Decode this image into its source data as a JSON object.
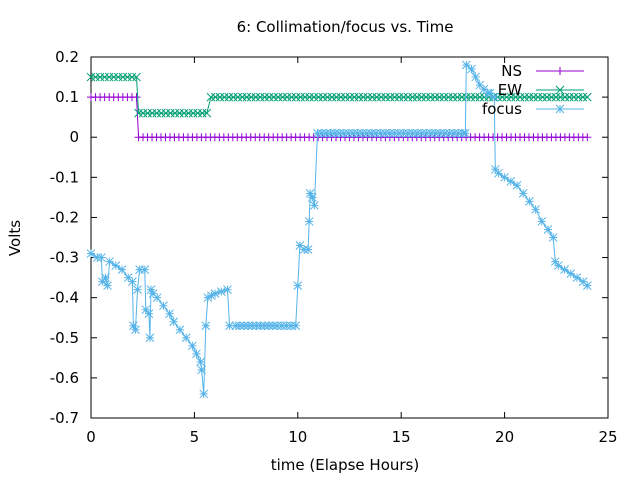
{
  "chart_data": {
    "type": "line",
    "title": "6: Collimation/focus vs. Time",
    "xlabel": "time (Elapse Hours)",
    "ylabel": "Volts",
    "xlim": [
      0,
      25
    ],
    "ylim": [
      -0.7,
      0.2
    ],
    "xticks": [
      "0",
      "5",
      "10",
      "15",
      "20",
      "25"
    ],
    "yticks": [
      "0.2",
      "0.1",
      "0",
      "-0.1",
      "-0.2",
      "-0.3",
      "-0.4",
      "-0.5",
      "-0.6",
      "-0.7"
    ],
    "grid": false,
    "legend_position": "top-right",
    "series": [
      {
        "name": "NS",
        "color": "#9400d3",
        "marker": "plus",
        "points": [
          [
            0,
            0.1
          ],
          [
            2.2,
            0.1
          ],
          [
            2.3,
            0.0
          ],
          [
            24,
            0.0
          ]
        ]
      },
      {
        "name": "EW",
        "color": "#009e73",
        "marker": "x",
        "points": [
          [
            0,
            0.15
          ],
          [
            2.2,
            0.15
          ],
          [
            2.3,
            0.06
          ],
          [
            5.6,
            0.06
          ],
          [
            5.8,
            0.1
          ],
          [
            24,
            0.1
          ]
        ]
      },
      {
        "name": "focus",
        "color": "#56b4e9",
        "marker": "star",
        "points": [
          [
            0,
            -0.29
          ],
          [
            0.3,
            -0.3
          ],
          [
            0.5,
            -0.3
          ],
          [
            0.55,
            -0.36
          ],
          [
            0.7,
            -0.35
          ],
          [
            0.8,
            -0.37
          ],
          [
            0.9,
            -0.31
          ],
          [
            1.2,
            -0.32
          ],
          [
            1.5,
            -0.33
          ],
          [
            1.8,
            -0.35
          ],
          [
            2.0,
            -0.36
          ],
          [
            2.05,
            -0.47
          ],
          [
            2.15,
            -0.48
          ],
          [
            2.25,
            -0.38
          ],
          [
            2.35,
            -0.33
          ],
          [
            2.6,
            -0.33
          ],
          [
            2.65,
            -0.43
          ],
          [
            2.8,
            -0.44
          ],
          [
            2.85,
            -0.5
          ],
          [
            2.9,
            -0.38
          ],
          [
            3.0,
            -0.39
          ],
          [
            3.2,
            -0.4
          ],
          [
            3.5,
            -0.42
          ],
          [
            3.8,
            -0.44
          ],
          [
            4.0,
            -0.46
          ],
          [
            4.3,
            -0.48
          ],
          [
            4.6,
            -0.5
          ],
          [
            4.9,
            -0.52
          ],
          [
            5.1,
            -0.54
          ],
          [
            5.3,
            -0.56
          ],
          [
            5.35,
            -0.58
          ],
          [
            5.45,
            -0.64
          ],
          [
            5.55,
            -0.47
          ],
          [
            5.65,
            -0.4
          ],
          [
            6.0,
            -0.39
          ],
          [
            6.3,
            -0.385
          ],
          [
            6.6,
            -0.38
          ],
          [
            6.7,
            -0.47
          ],
          [
            7,
            -0.47
          ],
          [
            8,
            -0.47
          ],
          [
            9,
            -0.47
          ],
          [
            9.9,
            -0.47
          ],
          [
            10.0,
            -0.37
          ],
          [
            10.1,
            -0.27
          ],
          [
            10.3,
            -0.28
          ],
          [
            10.5,
            -0.28
          ],
          [
            10.55,
            -0.21
          ],
          [
            10.6,
            -0.14
          ],
          [
            10.7,
            -0.15
          ],
          [
            10.8,
            -0.17
          ],
          [
            10.95,
            0.01
          ],
          [
            12,
            0.01
          ],
          [
            14,
            0.01
          ],
          [
            16,
            0.01
          ],
          [
            18,
            0.01
          ],
          [
            18.1,
            0.01
          ],
          [
            18.15,
            0.18
          ],
          [
            18.4,
            0.17
          ],
          [
            18.6,
            0.15
          ],
          [
            18.8,
            0.13
          ],
          [
            19.0,
            0.12
          ],
          [
            19.2,
            0.11
          ],
          [
            19.3,
            0.11
          ],
          [
            19.5,
            0.1
          ],
          [
            19.55,
            -0.08
          ],
          [
            19.7,
            -0.09
          ],
          [
            20.0,
            -0.1
          ],
          [
            20.3,
            -0.11
          ],
          [
            20.6,
            -0.12
          ],
          [
            20.9,
            -0.14
          ],
          [
            21.2,
            -0.16
          ],
          [
            21.5,
            -0.18
          ],
          [
            21.8,
            -0.21
          ],
          [
            22.1,
            -0.23
          ],
          [
            22.35,
            -0.25
          ],
          [
            22.45,
            -0.31
          ],
          [
            22.6,
            -0.32
          ],
          [
            22.9,
            -0.33
          ],
          [
            23.2,
            -0.34
          ],
          [
            23.5,
            -0.35
          ],
          [
            23.8,
            -0.36
          ],
          [
            24.0,
            -0.37
          ]
        ]
      }
    ]
  }
}
